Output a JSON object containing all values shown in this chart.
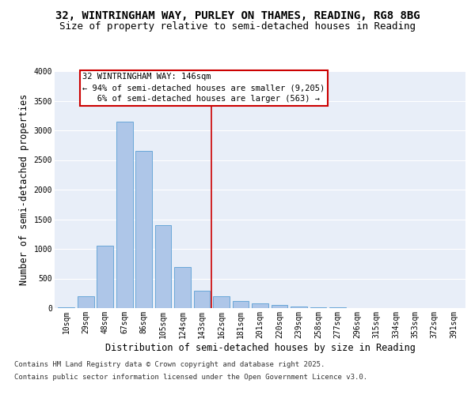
{
  "title_line1": "32, WINTRINGHAM WAY, PURLEY ON THAMES, READING, RG8 8BG",
  "title_line2": "Size of property relative to semi-detached houses in Reading",
  "xlabel": "Distribution of semi-detached houses by size in Reading",
  "ylabel": "Number of semi-detached properties",
  "categories": [
    "10sqm",
    "29sqm",
    "48sqm",
    "67sqm",
    "86sqm",
    "105sqm",
    "124sqm",
    "143sqm",
    "162sqm",
    "181sqm",
    "201sqm",
    "220sqm",
    "239sqm",
    "258sqm",
    "277sqm",
    "296sqm",
    "315sqm",
    "334sqm",
    "353sqm",
    "372sqm",
    "391sqm"
  ],
  "values": [
    10,
    200,
    1050,
    3150,
    2650,
    1400,
    700,
    300,
    200,
    125,
    75,
    50,
    30,
    15,
    10,
    5,
    3,
    2,
    1,
    0,
    0
  ],
  "bar_color": "#aec6e8",
  "bar_edge_color": "#5a9fd4",
  "vline_color": "#cc0000",
  "annotation_text": "32 WINTRINGHAM WAY: 146sqm\n← 94% of semi-detached houses are smaller (9,205)\n   6% of semi-detached houses are larger (563) →",
  "annotation_box_color": "#cc0000",
  "annotation_bg": "#ffffff",
  "ylim": [
    0,
    4000
  ],
  "yticks": [
    0,
    500,
    1000,
    1500,
    2000,
    2500,
    3000,
    3500,
    4000
  ],
  "background_color": "#e8eef8",
  "grid_color": "#ffffff",
  "footer_line1": "Contains HM Land Registry data © Crown copyright and database right 2025.",
  "footer_line2": "Contains public sector information licensed under the Open Government Licence v3.0.",
  "title_fontsize": 10,
  "subtitle_fontsize": 9,
  "axis_label_fontsize": 8.5,
  "tick_fontsize": 7,
  "annotation_fontsize": 7.5,
  "footer_fontsize": 6.5,
  "vline_pos": 7.5
}
